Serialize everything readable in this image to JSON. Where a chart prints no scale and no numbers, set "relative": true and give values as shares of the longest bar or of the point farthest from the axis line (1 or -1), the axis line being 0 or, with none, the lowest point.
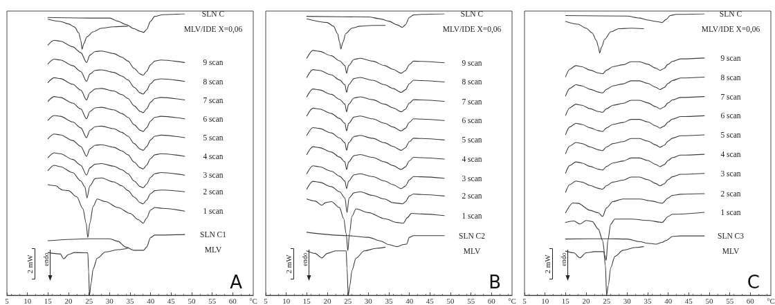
{
  "chart_data": [
    {
      "type": "line",
      "relative": true,
      "marker": "none",
      "tick_labels": "x",
      "xlabel": "°C",
      "xlim": [
        5,
        65
      ],
      "xticks": [
        5,
        10,
        15,
        20,
        25,
        30,
        35,
        40,
        45,
        50,
        55,
        60
      ],
      "annotations": [
        "2 mW",
        "endo",
        "A"
      ],
      "series": [
        {
          "name": "SLN C",
          "color": "#3a3a3a",
          "x": [
            15,
            25,
            30,
            32,
            34,
            36,
            37.5,
            38.3,
            39,
            40,
            41,
            43,
            48.3
          ],
          "values": [
            0.987,
            0.985,
            0.985,
            0.974,
            0.962,
            0.947,
            0.938,
            0.934,
            0.944,
            0.974,
            0.991,
            0.997,
            1.0
          ]
        },
        {
          "name": "MLV/IDE X=0,06",
          "color": "#3a3a3a",
          "x": [
            15,
            18,
            20,
            21.5,
            22.5,
            23,
            23.3,
            23.7,
            24.5,
            26,
            28,
            31,
            34.4
          ],
          "values": [
            0.981,
            0.973,
            0.964,
            0.953,
            0.932,
            0.906,
            0.874,
            0.893,
            0.919,
            0.936,
            0.949,
            0.954,
            0.956
          ]
        },
        {
          "name": "9 scan",
          "color": "#3a3a3a",
          "x": [
            15,
            16.5,
            18,
            21,
            23,
            24.4,
            25.2,
            26.5,
            28,
            31,
            33,
            34.5,
            36,
            37.5,
            38.2,
            39,
            40,
            41,
            42.5,
            48.3
          ],
          "values": [
            0.889,
            0.906,
            0.903,
            0.883,
            0.862,
            0.827,
            0.853,
            0.866,
            0.868,
            0.859,
            0.846,
            0.832,
            0.806,
            0.786,
            0.782,
            0.795,
            0.819,
            0.832,
            0.836,
            0.827
          ]
        },
        {
          "name": "8 scan",
          "color": "#3a3a3a",
          "x": [
            15,
            16.5,
            18,
            21,
            23,
            24.4,
            25.2,
            26.5,
            28,
            31,
            33,
            34.5,
            36,
            37.5,
            38.2,
            39,
            40,
            41,
            42.5,
            48.3
          ],
          "values": [
            0.822,
            0.839,
            0.836,
            0.816,
            0.795,
            0.76,
            0.786,
            0.799,
            0.801,
            0.792,
            0.779,
            0.765,
            0.739,
            0.719,
            0.715,
            0.728,
            0.752,
            0.765,
            0.769,
            0.76
          ]
        },
        {
          "name": "7 scan",
          "color": "#3a3a3a",
          "x": [
            15,
            16.5,
            18,
            21,
            23,
            24.4,
            25.2,
            26.5,
            28,
            31,
            33,
            34.5,
            36,
            37.5,
            38.2,
            39,
            40,
            41,
            42.5,
            48.3
          ],
          "values": [
            0.756,
            0.773,
            0.77,
            0.75,
            0.729,
            0.694,
            0.72,
            0.733,
            0.735,
            0.726,
            0.713,
            0.699,
            0.673,
            0.653,
            0.649,
            0.662,
            0.686,
            0.699,
            0.703,
            0.694
          ]
        },
        {
          "name": "6 scan",
          "color": "#3a3a3a",
          "x": [
            15,
            16.5,
            18,
            21,
            23,
            24.4,
            25.2,
            26.5,
            28,
            31,
            33,
            34.5,
            36,
            37.5,
            38.2,
            39,
            40,
            41,
            42.5,
            48.3
          ],
          "values": [
            0.689,
            0.706,
            0.703,
            0.683,
            0.662,
            0.627,
            0.653,
            0.666,
            0.668,
            0.659,
            0.646,
            0.632,
            0.606,
            0.586,
            0.582,
            0.595,
            0.619,
            0.632,
            0.636,
            0.627
          ]
        },
        {
          "name": "5 scan",
          "color": "#3a3a3a",
          "x": [
            15,
            16.5,
            18,
            21,
            23,
            24.4,
            25.2,
            26.5,
            28,
            31,
            33,
            34.5,
            36,
            37.5,
            38.2,
            39,
            40,
            41,
            42.5,
            48.3
          ],
          "values": [
            0.622,
            0.639,
            0.636,
            0.616,
            0.595,
            0.56,
            0.586,
            0.599,
            0.601,
            0.592,
            0.579,
            0.565,
            0.539,
            0.519,
            0.515,
            0.528,
            0.552,
            0.565,
            0.569,
            0.56
          ]
        },
        {
          "name": "4 scan",
          "color": "#3a3a3a",
          "x": [
            15,
            16.5,
            18,
            21,
            23,
            24.4,
            25.2,
            26.5,
            28,
            31,
            33,
            34.5,
            36,
            37.5,
            38.2,
            39,
            40,
            41,
            42.5,
            48.3
          ],
          "values": [
            0.556,
            0.573,
            0.57,
            0.55,
            0.529,
            0.494,
            0.52,
            0.533,
            0.535,
            0.526,
            0.513,
            0.499,
            0.473,
            0.453,
            0.449,
            0.462,
            0.486,
            0.499,
            0.503,
            0.494
          ]
        },
        {
          "name": "3 scan",
          "color": "#3a3a3a",
          "x": [
            15,
            16.5,
            18,
            21,
            23,
            24.4,
            25.2,
            26.5,
            28,
            31,
            33,
            34.5,
            36,
            37.5,
            38.2,
            39,
            40,
            41,
            42.5,
            48.3
          ],
          "values": [
            0.489,
            0.506,
            0.503,
            0.483,
            0.462,
            0.427,
            0.453,
            0.466,
            0.468,
            0.459,
            0.446,
            0.432,
            0.406,
            0.386,
            0.382,
            0.395,
            0.419,
            0.432,
            0.436,
            0.427
          ]
        },
        {
          "name": "2 scan",
          "color": "#3a3a3a",
          "x": [
            15,
            16.5,
            18,
            21,
            23,
            24,
            24.5,
            25.2,
            26.5,
            28,
            31,
            33,
            34.5,
            36,
            37.5,
            38.2,
            39,
            40,
            41,
            42.5,
            48.3
          ],
          "values": [
            0.443,
            0.462,
            0.457,
            0.436,
            0.406,
            0.385,
            0.346,
            0.389,
            0.415,
            0.417,
            0.403,
            0.389,
            0.372,
            0.349,
            0.329,
            0.325,
            0.338,
            0.361,
            0.372,
            0.374,
            0.368
          ]
        },
        {
          "name": "1 scan",
          "color": "#3a3a3a",
          "x": [
            15,
            17,
            18,
            18.5,
            20,
            22,
            23.5,
            24.3,
            24.7,
            25.2,
            26,
            27,
            29,
            32,
            35,
            37,
            38.2,
            39,
            40,
            41,
            43,
            48.3
          ],
          "values": [
            0.393,
            0.389,
            0.378,
            0.374,
            0.372,
            0.35,
            0.308,
            0.256,
            0.205,
            0.256,
            0.316,
            0.342,
            0.333,
            0.312,
            0.291,
            0.269,
            0.256,
            0.274,
            0.303,
            0.312,
            0.309,
            0.299
          ]
        },
        {
          "name": "SLN C1",
          "color": "#3a3a3a",
          "x": [
            15,
            25,
            30,
            32,
            34,
            36,
            38.3,
            39,
            40,
            41,
            48.3
          ],
          "values": [
            0.194,
            0.201,
            0.201,
            0.192,
            0.171,
            0.16,
            0.16,
            0.171,
            0.205,
            0.214,
            0.216
          ]
        },
        {
          "name": "MLV",
          "color": "#3a3a3a",
          "x": [
            15,
            18,
            18.8,
            20,
            21.5,
            24.7,
            24.9,
            25.1,
            25.5,
            26,
            27,
            29,
            32,
            34.4
          ],
          "values": [
            0.152,
            0.147,
            0.13,
            0.145,
            0.152,
            0.151,
            0.085,
            0.0,
            0.043,
            0.094,
            0.132,
            0.154,
            0.162,
            0.167
          ]
        }
      ]
    },
    {
      "type": "line",
      "relative": true,
      "marker": "none",
      "tick_labels": "x",
      "xlabel": "°C",
      "xlim": [
        5,
        65
      ],
      "xticks": [
        5,
        10,
        15,
        20,
        25,
        30,
        35,
        40,
        45,
        50,
        55,
        60
      ],
      "annotations": [
        "2 mW",
        "endo",
        "B"
      ],
      "series": [
        {
          "name": "SLN C",
          "color": "#3a3a3a",
          "x": [
            15,
            30,
            33,
            35,
            37,
            38.3,
            39,
            40,
            41,
            43,
            48.5
          ],
          "values": [
            0.991,
            0.989,
            0.982,
            0.974,
            0.961,
            0.952,
            0.961,
            0.987,
            0.996,
            0.998,
            1.0
          ]
        },
        {
          "name": "MLV/IDE X=0,06",
          "color": "#3a3a3a",
          "x": [
            15,
            20,
            21.5,
            22.5,
            23,
            23.3,
            23.8,
            24.5,
            26,
            28,
            31,
            34.1
          ],
          "values": [
            0.982,
            0.969,
            0.956,
            0.93,
            0.899,
            0.875,
            0.899,
            0.93,
            0.949,
            0.956,
            0.959,
            0.959
          ]
        },
        {
          "name": "9 scan",
          "color": "#3a3a3a",
          "x": [
            15,
            16.5,
            18,
            21,
            23,
            24.3,
            24.7,
            25.2,
            26.5,
            28,
            31,
            34,
            36,
            38,
            39,
            40,
            41,
            43,
            48.5
          ],
          "values": [
            0.842,
            0.87,
            0.867,
            0.851,
            0.833,
            0.816,
            0.789,
            0.816,
            0.838,
            0.842,
            0.832,
            0.816,
            0.803,
            0.789,
            0.798,
            0.82,
            0.832,
            0.831,
            0.826
          ]
        },
        {
          "name": "8 scan",
          "color": "#3a3a3a",
          "x": [
            15,
            16.5,
            18,
            21,
            23,
            24.3,
            24.7,
            25.2,
            26.5,
            28,
            31,
            34,
            36,
            38,
            39,
            40,
            41,
            43,
            48.5
          ],
          "values": [
            0.774,
            0.802,
            0.799,
            0.783,
            0.765,
            0.748,
            0.721,
            0.748,
            0.77,
            0.774,
            0.764,
            0.748,
            0.735,
            0.721,
            0.73,
            0.752,
            0.764,
            0.763,
            0.758
          ]
        },
        {
          "name": "7 scan",
          "color": "#3a3a3a",
          "x": [
            15,
            16.5,
            18,
            21,
            23,
            24.3,
            24.7,
            25.2,
            26.5,
            28,
            31,
            34,
            36,
            38,
            39,
            40,
            41,
            43,
            48.5
          ],
          "values": [
            0.705,
            0.733,
            0.73,
            0.714,
            0.696,
            0.679,
            0.652,
            0.679,
            0.701,
            0.705,
            0.695,
            0.679,
            0.666,
            0.652,
            0.661,
            0.683,
            0.695,
            0.694,
            0.689
          ]
        },
        {
          "name": "6 scan",
          "color": "#3a3a3a",
          "x": [
            15,
            16.5,
            18,
            21,
            23,
            24.3,
            24.7,
            25.2,
            26.5,
            28,
            31,
            34,
            36,
            38,
            39,
            40,
            41,
            43,
            48.5
          ],
          "values": [
            0.637,
            0.665,
            0.662,
            0.646,
            0.628,
            0.611,
            0.584,
            0.611,
            0.633,
            0.637,
            0.627,
            0.611,
            0.598,
            0.584,
            0.593,
            0.615,
            0.627,
            0.626,
            0.621
          ]
        },
        {
          "name": "5 scan",
          "color": "#3a3a3a",
          "x": [
            15,
            16.5,
            18,
            21,
            23,
            24.3,
            24.7,
            25.2,
            26.5,
            28,
            31,
            34,
            36,
            38,
            39,
            40,
            41,
            43,
            48.5
          ],
          "values": [
            0.568,
            0.596,
            0.593,
            0.577,
            0.559,
            0.542,
            0.515,
            0.542,
            0.564,
            0.568,
            0.558,
            0.542,
            0.529,
            0.515,
            0.524,
            0.546,
            0.558,
            0.557,
            0.552
          ]
        },
        {
          "name": "4 scan",
          "color": "#3a3a3a",
          "x": [
            15,
            16.5,
            18,
            21,
            23,
            24.3,
            24.7,
            25.2,
            26.5,
            28,
            31,
            34,
            36,
            38,
            39,
            40,
            41,
            43,
            48.5
          ],
          "values": [
            0.5,
            0.528,
            0.525,
            0.509,
            0.491,
            0.474,
            0.447,
            0.474,
            0.496,
            0.5,
            0.49,
            0.474,
            0.461,
            0.447,
            0.456,
            0.478,
            0.49,
            0.489,
            0.484
          ]
        },
        {
          "name": "3 scan",
          "color": "#3a3a3a",
          "x": [
            15,
            16.5,
            18,
            21,
            23,
            24.3,
            24.7,
            25.2,
            26.5,
            28,
            31,
            34,
            36,
            38,
            39,
            40,
            41,
            43,
            48.5
          ],
          "values": [
            0.432,
            0.46,
            0.457,
            0.441,
            0.423,
            0.406,
            0.379,
            0.406,
            0.428,
            0.432,
            0.422,
            0.406,
            0.393,
            0.379,
            0.388,
            0.41,
            0.422,
            0.421,
            0.416
          ]
        },
        {
          "name": "2 scan",
          "color": "#3a3a3a",
          "x": [
            15,
            16.5,
            18,
            21,
            23,
            24.3,
            24.8,
            25.3,
            26.5,
            28,
            31,
            34,
            36,
            38.3,
            39,
            40,
            41,
            43,
            48.5
          ],
          "values": [
            0.377,
            0.405,
            0.402,
            0.386,
            0.368,
            0.346,
            0.294,
            0.346,
            0.364,
            0.368,
            0.355,
            0.342,
            0.329,
            0.325,
            0.332,
            0.353,
            0.36,
            0.358,
            0.353
          ]
        },
        {
          "name": "1 scan",
          "color": "#3a3a3a",
          "x": [
            15,
            17,
            18.7,
            19.5,
            21,
            23,
            24,
            24.6,
            25,
            25.4,
            26,
            27,
            30,
            34,
            37,
            38.5,
            39.5,
            40.5,
            43,
            48.5
          ],
          "values": [
            0.342,
            0.335,
            0.32,
            0.329,
            0.333,
            0.311,
            0.272,
            0.219,
            0.158,
            0.219,
            0.281,
            0.307,
            0.294,
            0.272,
            0.259,
            0.256,
            0.276,
            0.291,
            0.289,
            0.283
          ]
        },
        {
          "name": "SLN C2",
          "color": "#3a3a3a",
          "x": [
            15,
            25,
            30,
            33,
            35,
            37,
            38.5,
            39.3,
            40,
            41,
            48.5
          ],
          "values": [
            0.224,
            0.212,
            0.206,
            0.193,
            0.18,
            0.173,
            0.18,
            0.182,
            0.206,
            0.212,
            0.212
          ]
        },
        {
          "name": "MLV",
          "color": "#3a3a3a",
          "x": [
            15,
            17,
            18.7,
            20,
            22,
            24.6,
            24.8,
            25.1,
            25.5,
            26,
            27,
            29,
            32,
            34.1
          ],
          "values": [
            0.158,
            0.149,
            0.133,
            0.149,
            0.158,
            0.158,
            0.096,
            0.0,
            0.035,
            0.088,
            0.132,
            0.158,
            0.167,
            0.171
          ]
        }
      ]
    },
    {
      "type": "line",
      "relative": true,
      "marker": "none",
      "tick_labels": "x",
      "xlabel": "°C",
      "xlim": [
        5,
        65
      ],
      "xticks": [
        5,
        10,
        15,
        20,
        25,
        30,
        35,
        40,
        45,
        50,
        55,
        60
      ],
      "annotations": [
        "2 mW",
        "endo",
        "C"
      ],
      "series": [
        {
          "name": "SLN C",
          "color": "#3a3a3a",
          "x": [
            15,
            30,
            33,
            35,
            37,
            38.5,
            39.5,
            40.5,
            42,
            48.8
          ],
          "values": [
            0.994,
            0.992,
            0.985,
            0.978,
            0.973,
            0.969,
            0.98,
            0.994,
            0.998,
            1.0
          ]
        },
        {
          "name": "MLV/IDE X=0,06",
          "color": "#3a3a3a",
          "x": [
            15,
            18,
            20,
            21.5,
            22.5,
            23,
            23.3,
            23.8,
            24.5,
            26,
            28,
            31,
            34
          ],
          "values": [
            0.973,
            0.963,
            0.949,
            0.932,
            0.905,
            0.883,
            0.861,
            0.883,
            0.909,
            0.936,
            0.947,
            0.949,
            0.947
          ]
        },
        {
          "name": "9 scan",
          "color": "#3a3a3a",
          "x": [
            15,
            16,
            17.5,
            19,
            21,
            23,
            24,
            25,
            26.5,
            29,
            31,
            33,
            35,
            37,
            38,
            39,
            40,
            41,
            43,
            48.8
          ],
          "values": [
            0.776,
            0.803,
            0.816,
            0.812,
            0.8,
            0.79,
            0.787,
            0.8,
            0.812,
            0.819,
            0.83,
            0.83,
            0.821,
            0.807,
            0.799,
            0.806,
            0.821,
            0.831,
            0.84,
            0.843
          ]
        },
        {
          "name": "8 scan",
          "color": "#3a3a3a",
          "x": [
            15,
            16,
            17.5,
            19,
            21,
            23,
            24,
            25,
            26.5,
            29,
            31,
            33,
            35,
            37,
            38,
            39,
            40,
            41,
            43,
            48.8
          ],
          "values": [
            0.708,
            0.735,
            0.748,
            0.744,
            0.732,
            0.722,
            0.719,
            0.732,
            0.744,
            0.751,
            0.762,
            0.762,
            0.753,
            0.739,
            0.731,
            0.738,
            0.753,
            0.763,
            0.772,
            0.775
          ]
        },
        {
          "name": "7 scan",
          "color": "#3a3a3a",
          "x": [
            15,
            16,
            17.5,
            19,
            21,
            23,
            24,
            25,
            26.5,
            29,
            31,
            33,
            35,
            37,
            38,
            39,
            40,
            41,
            43,
            48.8
          ],
          "values": [
            0.639,
            0.666,
            0.679,
            0.675,
            0.663,
            0.653,
            0.65,
            0.663,
            0.675,
            0.682,
            0.693,
            0.693,
            0.684,
            0.67,
            0.662,
            0.669,
            0.684,
            0.694,
            0.703,
            0.706
          ]
        },
        {
          "name": "6 scan",
          "color": "#3a3a3a",
          "x": [
            15,
            16,
            17.5,
            19,
            21,
            23,
            24,
            25,
            26.5,
            29,
            31,
            33,
            35,
            37,
            38,
            39,
            40,
            41,
            43,
            48.8
          ],
          "values": [
            0.571,
            0.598,
            0.611,
            0.607,
            0.595,
            0.585,
            0.582,
            0.595,
            0.607,
            0.614,
            0.625,
            0.625,
            0.616,
            0.602,
            0.594,
            0.601,
            0.616,
            0.626,
            0.635,
            0.638
          ]
        },
        {
          "name": "5 scan",
          "color": "#3a3a3a",
          "x": [
            15,
            16,
            17.5,
            19,
            21,
            23,
            24,
            25,
            26.5,
            29,
            31,
            33,
            35,
            37,
            38,
            39,
            40,
            41,
            43,
            48.8
          ],
          "values": [
            0.503,
            0.53,
            0.543,
            0.539,
            0.527,
            0.517,
            0.514,
            0.527,
            0.539,
            0.546,
            0.557,
            0.557,
            0.548,
            0.534,
            0.526,
            0.533,
            0.548,
            0.558,
            0.567,
            0.57
          ]
        },
        {
          "name": "4 scan",
          "color": "#3a3a3a",
          "x": [
            15,
            16,
            17.5,
            19,
            21,
            23,
            24,
            25,
            26.5,
            29,
            31,
            33,
            35,
            37,
            38,
            39,
            40,
            41,
            43,
            48.8
          ],
          "values": [
            0.434,
            0.461,
            0.474,
            0.47,
            0.458,
            0.448,
            0.445,
            0.458,
            0.47,
            0.477,
            0.488,
            0.488,
            0.479,
            0.465,
            0.457,
            0.464,
            0.479,
            0.489,
            0.498,
            0.501
          ]
        },
        {
          "name": "3 scan",
          "color": "#3a3a3a",
          "x": [
            15,
            16,
            17.5,
            19,
            21,
            23,
            24,
            25,
            26.5,
            29,
            31,
            33,
            35,
            37,
            38,
            39,
            40,
            41,
            43,
            48.8
          ],
          "values": [
            0.366,
            0.393,
            0.406,
            0.402,
            0.39,
            0.38,
            0.377,
            0.39,
            0.402,
            0.409,
            0.42,
            0.42,
            0.411,
            0.397,
            0.389,
            0.396,
            0.411,
            0.421,
            0.43,
            0.433
          ]
        },
        {
          "name": "2 scan",
          "color": "#3a3a3a",
          "x": [
            15,
            16.8,
            18,
            21,
            23,
            24,
            25,
            26.5,
            29,
            33,
            36,
            38.5,
            40,
            41,
            43,
            48.8
          ],
          "values": [
            0.293,
            0.328,
            0.327,
            0.302,
            0.293,
            0.28,
            0.311,
            0.333,
            0.342,
            0.342,
            0.335,
            0.327,
            0.346,
            0.355,
            0.359,
            0.361
          ]
        },
        {
          "name": "1 scan",
          "color": "#3a3a3a",
          "x": [
            15,
            17,
            18.5,
            20,
            21.5,
            23,
            24,
            24.6,
            24.9,
            25.3,
            26,
            27,
            31,
            35,
            38.5,
            40,
            41,
            48.8
          ],
          "values": [
            0.259,
            0.264,
            0.253,
            0.266,
            0.262,
            0.235,
            0.195,
            0.142,
            0.124,
            0.195,
            0.253,
            0.271,
            0.271,
            0.266,
            0.259,
            0.28,
            0.288,
            0.295
          ]
        },
        {
          "name": "SLN C3",
          "color": "#3a3a3a",
          "x": [
            15,
            25,
            30,
            33,
            35,
            37,
            38.5,
            39.5,
            41,
            43,
            48.8
          ],
          "values": [
            0.2,
            0.201,
            0.2,
            0.191,
            0.185,
            0.182,
            0.188,
            0.195,
            0.209,
            0.211,
            0.211
          ]
        },
        {
          "name": "MLV",
          "color": "#3a3a3a",
          "x": [
            15,
            17,
            18.5,
            20,
            22,
            24.3,
            24.7,
            25,
            25.4,
            26,
            27,
            29,
            32,
            34
          ],
          "values": [
            0.157,
            0.151,
            0.133,
            0.151,
            0.155,
            0.155,
            0.106,
            0.0,
            0.035,
            0.098,
            0.138,
            0.16,
            0.17,
            0.173
          ]
        }
      ]
    }
  ]
}
